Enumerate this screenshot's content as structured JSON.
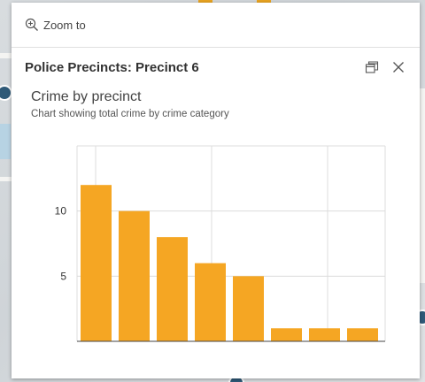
{
  "popup": {
    "zoom_label": "Zoom to",
    "title": "Police Precincts: Precinct 6",
    "dock_icon": "dock-icon",
    "close_icon": "close-icon",
    "zoom_icon": "zoom-in-icon"
  },
  "chart_data": {
    "type": "bar",
    "title": "Crime by precinct",
    "subtitle": "Chart showing total crime by crime category",
    "categories": [
      "",
      "",
      "",
      "",
      "",
      "",
      "",
      ""
    ],
    "values": [
      12,
      10,
      8,
      6,
      5,
      1,
      1,
      1
    ],
    "ylim": [
      0,
      15
    ],
    "yticks": [
      5,
      10
    ],
    "grid": true,
    "bar_color": "#f5a623",
    "xlabel": "",
    "ylabel": ""
  }
}
